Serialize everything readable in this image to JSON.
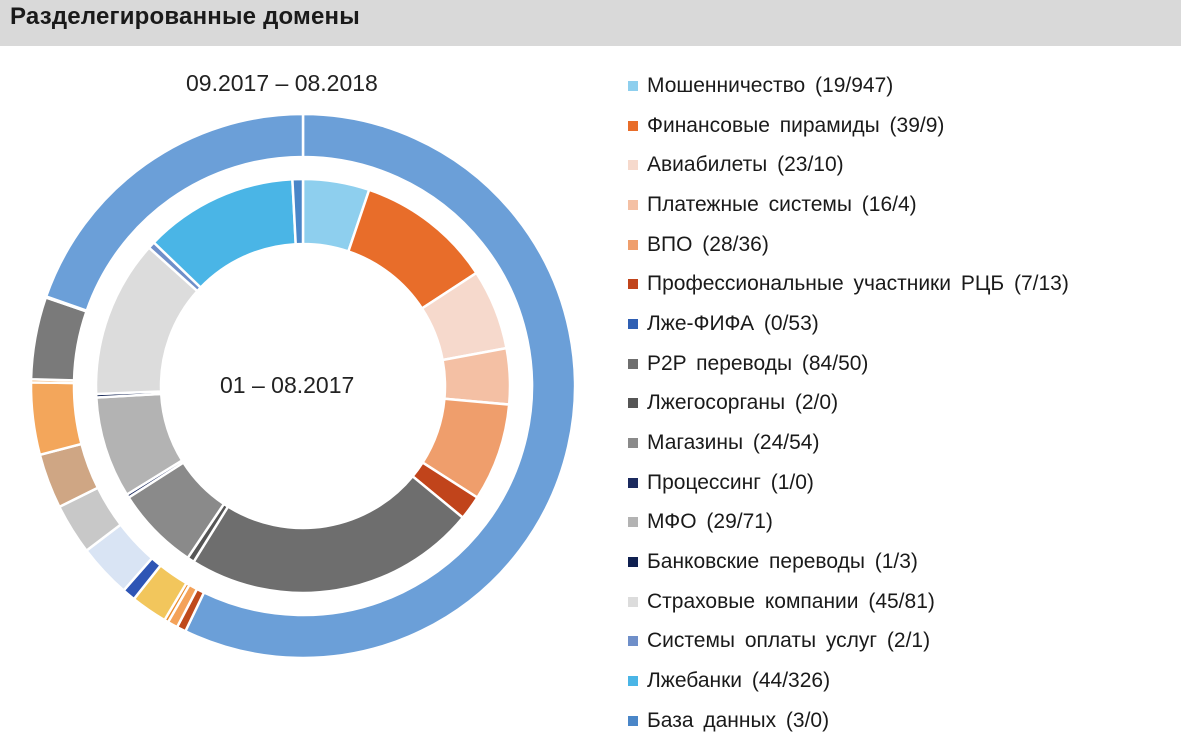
{
  "header": {
    "title": "Разделегированные домены"
  },
  "chart_data": {
    "type": "donut",
    "outer_ring_label": "09.2017 – 08.2018",
    "inner_ring_label": "01 – 08.2017",
    "categories": [
      "Мошенничество",
      "Финансовые пирамиды",
      "Авиабилеты",
      "Платежные системы",
      "ВПО",
      "Профессиональные участники РЦБ",
      "Лже-ФИФА",
      "P2P переводы",
      "Лжегосорганы",
      "Магазины",
      "Процессинг",
      "МФО",
      "Банковские переводы",
      "Страховые компании",
      "Системы оплаты услуг",
      "Лжебанки",
      "База данных"
    ],
    "series": [
      {
        "ring": "inner",
        "values": [
          19,
          39,
          23,
          16,
          28,
          7,
          0,
          84,
          2,
          24,
          1,
          29,
          1,
          45,
          2,
          44,
          3
        ]
      },
      {
        "ring": "outer",
        "values": [
          947,
          9,
          10,
          4,
          36,
          13,
          53,
          50,
          0,
          54,
          0,
          71,
          3,
          81,
          1,
          326,
          0
        ]
      }
    ],
    "colors": [
      "#8ecfee",
      "#e86d2a",
      "#f6d9cc",
      "#f4c0a4",
      "#ef9e6c",
      "#c1441b",
      "#2f5fb3",
      "#6e6e6e",
      "#555555",
      "#8a8a8a",
      "#1b2a5e",
      "#b3b3b3",
      "#0f2050",
      "#dcdcdc",
      "#6f8fc9",
      "#4ab5e6",
      "#4a86c8"
    ],
    "outer_ring_colors": [
      "#6b9fd8",
      "#bf4a1c",
      "#f4a259",
      "#ea8a2a",
      "#f2c65c",
      "#2e55b5",
      "#d9e4f4",
      "#c8c8c8",
      "#e2cdb0",
      "#cfa684",
      "#b8755e",
      "#f3a65b",
      "#ed9130",
      "#7a7a7a",
      "#b8b8b8",
      "#6b9fd8",
      "#4a86c8"
    ],
    "legend": [
      "Мошенничество  (19/947)",
      "Финансовые  пирамиды  (39/9)",
      "Авиабилеты  (23/10)",
      "Платежные  системы  (16/4)",
      "ВПО  (28/36)",
      "Профессиональные   участники  РЦБ  (7/13)",
      "Лже-ФИФА  (0/53)",
      "P2P  переводы  (84/50)",
      "Лжегосорганы  (2/0)",
      "Магазины  (24/54)",
      "Процессинг  (1/0)",
      "МФО  (29/71)",
      "Банковские  переводы  (1/3)",
      "Страховые  компании  (45/81)",
      "Системы  оплаты  услуг  (2/1)",
      "Лжебанки  (44/326)",
      "База  данных  (3/0)"
    ],
    "legend_position": "right"
  }
}
